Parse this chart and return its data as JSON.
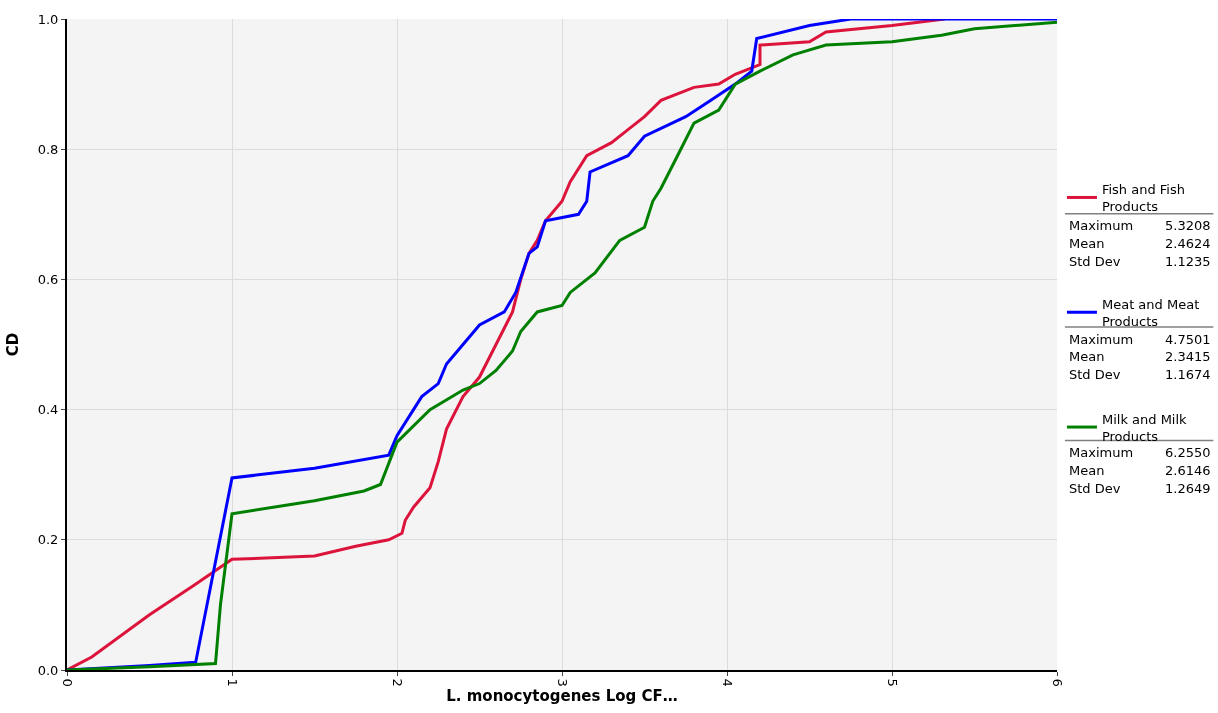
{
  "chart_data": {
    "type": "line",
    "xlabel": "L. monocytogenes Log CF…",
    "ylabel": "CD",
    "xlim": [
      0,
      6
    ],
    "xticks": [
      0,
      1,
      2,
      3,
      4,
      5,
      6
    ],
    "ylim": [
      0,
      1
    ],
    "yticks": [
      {
        "value": 0,
        "label": "0.0"
      },
      {
        "value": 0.2,
        "label": "0.2"
      },
      {
        "value": 0.4,
        "label": "0.4"
      },
      {
        "value": 0.6,
        "label": "0.6"
      },
      {
        "value": 0.8,
        "label": "0.8"
      },
      {
        "value": 1,
        "label": "1.0"
      }
    ],
    "grid": true,
    "legend": "right",
    "line_style": "solid",
    "marker": "none",
    "series": [
      {
        "name": "Fish and Fish Products",
        "color": "#dc143c",
        "x": [
          0,
          0.15,
          0.5,
          0.77,
          1.0,
          1.5,
          1.75,
          1.95,
          2.03,
          2.05,
          2.1,
          2.2,
          2.25,
          2.3,
          2.4,
          2.5,
          2.6,
          2.7,
          2.75,
          2.8,
          2.85,
          2.9,
          3.0,
          3.05,
          3.15,
          3.3,
          3.4,
          3.5,
          3.6,
          3.8,
          3.95,
          4.05,
          4.2,
          4.2,
          4.5,
          4.6,
          5.0,
          5.32
        ],
        "values": [
          0,
          0.02,
          0.085,
          0.13,
          0.17,
          0.175,
          0.19,
          0.2,
          0.21,
          0.23,
          0.25,
          0.28,
          0.32,
          0.37,
          0.42,
          0.45,
          0.5,
          0.55,
          0.6,
          0.64,
          0.66,
          0.69,
          0.72,
          0.75,
          0.79,
          0.81,
          0.83,
          0.85,
          0.875,
          0.895,
          0.9,
          0.915,
          0.93,
          0.96,
          0.965,
          0.98,
          0.99,
          1.0
        ]
      },
      {
        "name": "Meat and Meat Products",
        "color": "#0000ff",
        "x": [
          0,
          0.5,
          0.78,
          1.0,
          1.5,
          1.95,
          2.0,
          2.1,
          2.15,
          2.25,
          2.3,
          2.4,
          2.5,
          2.65,
          2.72,
          2.8,
          2.85,
          2.9,
          3.1,
          3.15,
          3.17,
          3.4,
          3.5,
          3.75,
          3.9,
          4.05,
          4.15,
          4.18,
          4.5,
          4.75,
          6
        ],
        "values": [
          0,
          0.007,
          0.012,
          0.295,
          0.31,
          0.33,
          0.36,
          0.4,
          0.42,
          0.44,
          0.47,
          0.5,
          0.53,
          0.55,
          0.58,
          0.64,
          0.65,
          0.69,
          0.7,
          0.72,
          0.765,
          0.79,
          0.82,
          0.85,
          0.875,
          0.9,
          0.92,
          0.97,
          0.99,
          1.0,
          1.0
        ]
      },
      {
        "name": "Milk and Milk Products",
        "color": "#008000",
        "x": [
          0,
          0.5,
          0.9,
          0.93,
          1.0,
          1.5,
          1.8,
          1.9,
          2.0,
          2.2,
          2.4,
          2.5,
          2.6,
          2.7,
          2.75,
          2.85,
          3.0,
          3.05,
          3.2,
          3.35,
          3.5,
          3.55,
          3.6,
          3.7,
          3.8,
          3.95,
          4.05,
          4.2,
          4.4,
          4.6,
          5.0,
          5.3,
          5.5,
          6
        ],
        "values": [
          0,
          0.005,
          0.01,
          0.1,
          0.24,
          0.26,
          0.275,
          0.285,
          0.35,
          0.4,
          0.43,
          0.44,
          0.46,
          0.49,
          0.52,
          0.55,
          0.56,
          0.58,
          0.61,
          0.66,
          0.68,
          0.72,
          0.74,
          0.79,
          0.84,
          0.86,
          0.9,
          0.92,
          0.945,
          0.96,
          0.965,
          0.975,
          0.985,
          0.995
        ]
      }
    ],
    "annotations": [
      "Maximum 5.3208",
      "Mean 2.4624",
      "Std Dev 1.1235",
      "Maximum 4.7501",
      "Mean 2.3415",
      "Std Dev 1.1674",
      "Maximum 6.2550",
      "Mean 2.6146",
      "Std Dev 1.2649"
    ]
  }
}
